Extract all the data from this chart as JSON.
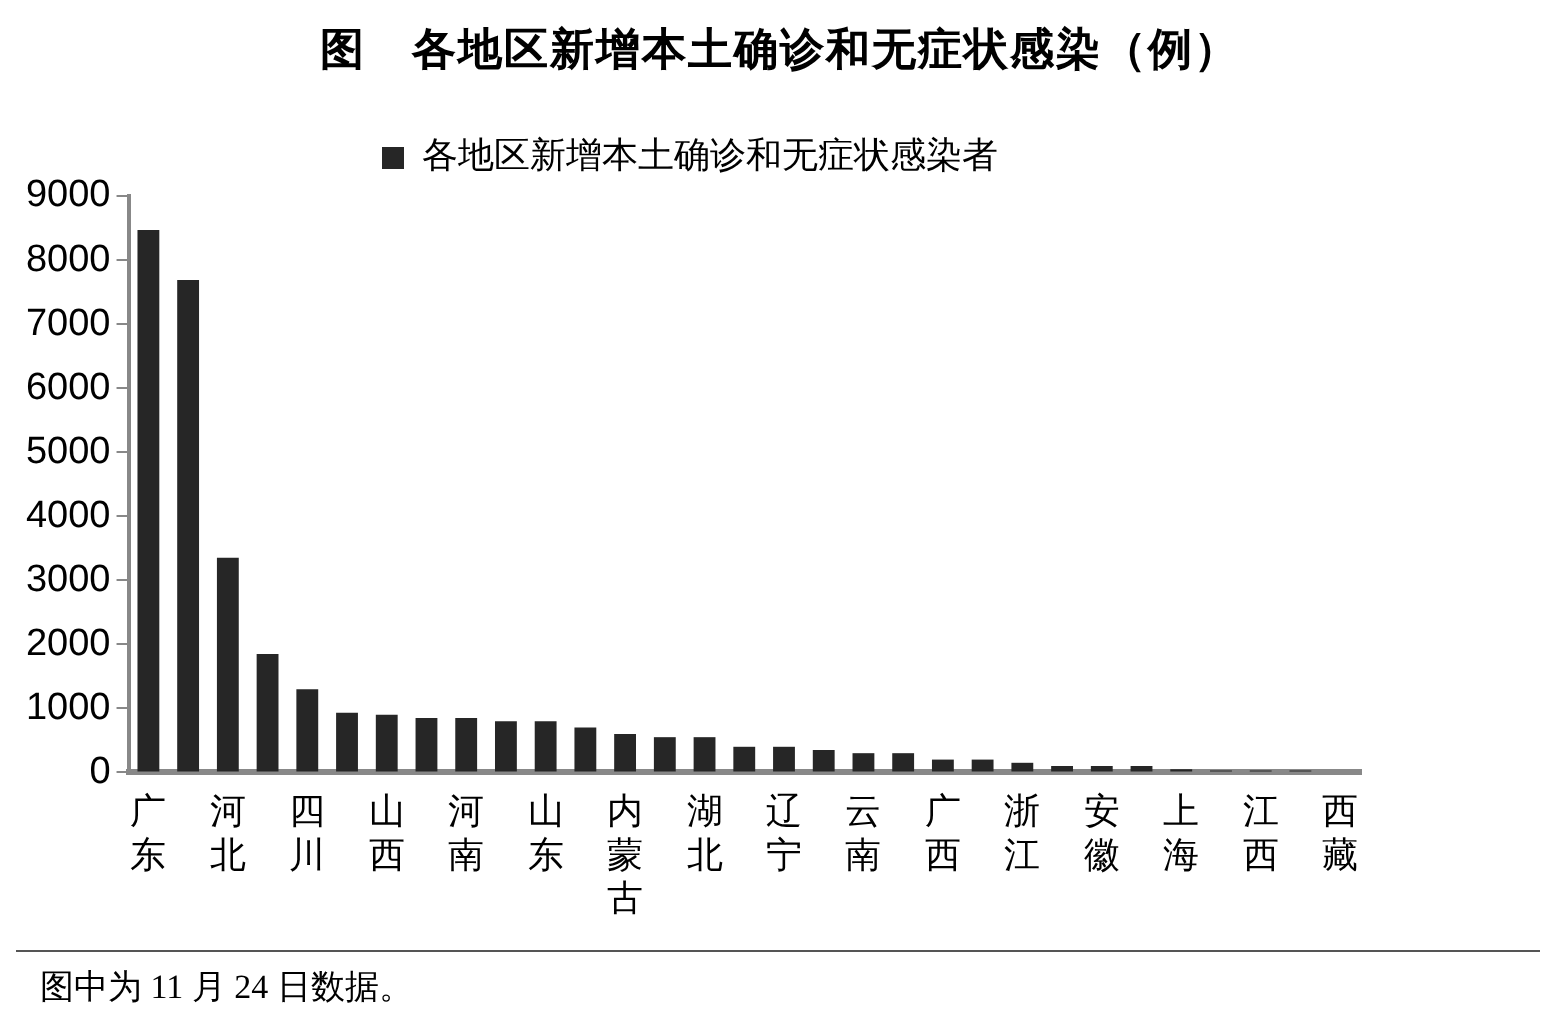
{
  "chart_data": {
    "type": "bar",
    "title": "图　各地区新增本土确诊和无症状感染（例）",
    "categories": [
      "广东",
      null,
      "河北",
      null,
      "四川",
      null,
      "山西",
      null,
      "河南",
      null,
      "山东",
      null,
      "内蒙古",
      null,
      "湖北",
      null,
      "辽宁",
      null,
      "云南",
      null,
      "广西",
      null,
      "浙江",
      null,
      "安徽",
      null,
      "上海",
      null,
      "江西",
      null,
      "西藏"
    ],
    "series": [
      {
        "name": "各地区新增本土确诊和无症状感染者",
        "color": "#262626",
        "values": [
          8470,
          7690,
          3350,
          1850,
          1300,
          930,
          900,
          850,
          850,
          800,
          800,
          700,
          600,
          550,
          550,
          400,
          400,
          350,
          300,
          300,
          200,
          200,
          150,
          100,
          100,
          100,
          50,
          30,
          30,
          30,
          0
        ]
      }
    ],
    "ylim": [
      0,
      9000
    ],
    "yticks": [
      0,
      1000,
      2000,
      3000,
      4000,
      5000,
      6000,
      7000,
      8000,
      9000
    ],
    "grid": false,
    "legend": "top",
    "annotations": [
      "图中为 11 月 24 日数据。"
    ]
  }
}
